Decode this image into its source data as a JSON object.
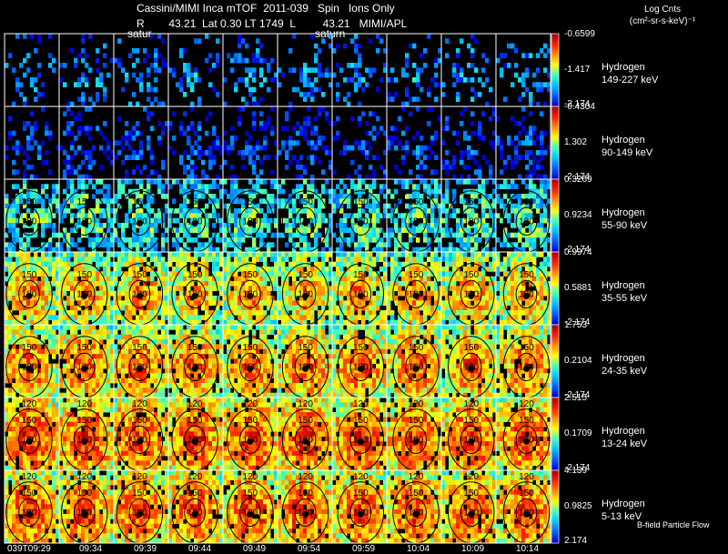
{
  "header": {
    "line1": "Cassini/MIMI Inca mTOF  2011-039   Spin   Ions Only",
    "line2": "R        43.21  Lat 0.30 LT 1749  L         43.21   MIMI/APL",
    "units_line1": "Log Cnts",
    "units_line2": "(cm²-sr-s-keV)⁻¹",
    "saturn_label": "satur",
    "saturn_label_2": "saturn"
  },
  "footer": "B-field Particle Flow",
  "chart_data": {
    "type": "heatmap",
    "title": "Cassini/MIMI Inca mTOF 2011-039 Spin Ions Only",
    "x_tick_labels": [
      "039T09:29",
      "09:34",
      "09:39",
      "09:44",
      "09:49",
      "09:54",
      "09:59",
      "10:04",
      "10:09",
      "10:14"
    ],
    "contour_labels": [
      "120",
      "150",
      "180"
    ],
    "colormap": [
      "#0000d0",
      "#0060ff",
      "#00c0ff",
      "#40ffc0",
      "#ffff00",
      "#ff9000",
      "#ff2000",
      "#b00000"
    ],
    "rows": [
      {
        "species": "Hydrogen",
        "energy": "149-227 keV",
        "scale": [
          "-0.6599",
          "-1.417",
          "-2.174"
        ],
        "fill": 0.45,
        "level": 0.25
      },
      {
        "species": "Hydrogen",
        "energy": "90-149 keV",
        "scale": [
          "-0.4304",
          "1.302",
          "-2.174"
        ],
        "fill": 0.5,
        "level": 0.15
      },
      {
        "species": "Hydrogen",
        "energy": "55-90 keV",
        "scale": [
          "0.3269",
          "0.9234",
          "-2.174"
        ],
        "fill": 0.85,
        "level": 0.45
      },
      {
        "species": "Hydrogen",
        "energy": "35-55 keV",
        "scale": [
          "0.9974",
          "0.5881",
          "-2.174"
        ],
        "fill": 0.95,
        "level": 0.72
      },
      {
        "species": "Hydrogen",
        "energy": "24-35 keV",
        "scale": [
          "1.753",
          "0.2104",
          "-2.174"
        ],
        "fill": 0.97,
        "level": 0.78
      },
      {
        "species": "Hydrogen",
        "energy": "13-24 keV",
        "scale": [
          "2.515",
          "0.1709",
          "-2.174"
        ],
        "fill": 0.98,
        "level": 0.84
      },
      {
        "species": "Hydrogen",
        "energy": "5-13 keV",
        "scale": [
          "4.139",
          "0.9825",
          "2.174"
        ],
        "fill": 0.98,
        "level": 0.82
      }
    ]
  }
}
